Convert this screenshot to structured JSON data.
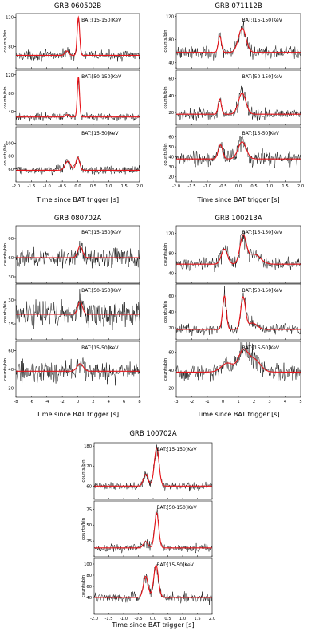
{
  "chart_data": [
    {
      "type": "line",
      "title": "GRB 060502B",
      "xlabel": "Time since BAT trigger [s]",
      "xlim": [
        -2.0,
        2.0
      ],
      "xticks": [
        -2.0,
        -1.5,
        -1.0,
        -0.5,
        0.0,
        0.5,
        1.0,
        1.5,
        2.0
      ],
      "xtick_labels": [
        "-2.0",
        "-1.5",
        "-1.0",
        "-0.5",
        "0.0",
        "0.5",
        "1.0",
        "1.5",
        "2.0"
      ],
      "ylabel": "counts/bin",
      "grid": false,
      "panels": [
        {
          "band": "BAT:[15-150]KeV",
          "ylim": [
            50,
            125
          ],
          "yticks": [
            80,
            120
          ],
          "baseline": 68,
          "noise": 4,
          "peaks": [
            {
              "x": 0.02,
              "height": 52,
              "width": 0.04
            },
            {
              "x": -0.35,
              "height": 6,
              "width": 0.06
            }
          ]
        },
        {
          "band": "BAT:[50-150]KeV",
          "ylim": [
            10,
            130
          ],
          "yticks": [
            40,
            80,
            120
          ],
          "baseline": 28,
          "noise": 5,
          "peaks": [
            {
              "x": 0.02,
              "height": 88,
              "width": 0.035
            },
            {
              "x": -0.35,
              "height": 5,
              "width": 0.05
            }
          ]
        },
        {
          "band": "BAT:[15-50]KeV",
          "ylim": [
            40,
            125
          ],
          "yticks": [
            60,
            80,
            100
          ],
          "baseline": 58,
          "noise": 4,
          "peaks": [
            {
              "x": 0.0,
              "height": 20,
              "width": 0.06
            },
            {
              "x": -0.32,
              "height": 14,
              "width": 0.09
            }
          ]
        }
      ]
    },
    {
      "type": "line",
      "title": "GRB 071112B",
      "xlabel": "Time since BAT trigger [s]",
      "xlim": [
        -2.0,
        2.0
      ],
      "xticks": [
        -2.0,
        -1.5,
        -1.0,
        -0.5,
        0.0,
        0.5,
        1.0,
        1.5,
        2.0
      ],
      "xtick_labels": [
        "-2.0",
        "-1.5",
        "-1.0",
        "-0.5",
        "0.0",
        "0.5",
        "1.0",
        "1.5",
        "2.0"
      ],
      "ylabel": "counts/bin",
      "grid": false,
      "panels": [
        {
          "band": "BAT:[15-150]KeV",
          "ylim": [
            30,
            125
          ],
          "yticks": [
            40,
            80,
            120
          ],
          "baseline": 58,
          "noise": 7,
          "peaks": [
            {
              "x": 0.12,
              "height": 42,
              "width": 0.12
            },
            {
              "x": -0.6,
              "height": 28,
              "width": 0.05
            }
          ]
        },
        {
          "band": "BAT:[50-150]KeV",
          "ylim": [
            5,
            70
          ],
          "yticks": [
            20,
            40,
            60
          ],
          "baseline": 18,
          "noise": 4,
          "peaks": [
            {
              "x": 0.12,
              "height": 25,
              "width": 0.12
            },
            {
              "x": -0.6,
              "height": 18,
              "width": 0.05
            }
          ]
        },
        {
          "band": "BAT:[15-50]KeV",
          "ylim": [
            15,
            70
          ],
          "yticks": [
            20,
            30,
            40,
            50,
            60
          ],
          "baseline": 38,
          "noise": 5,
          "peaks": [
            {
              "x": 0.12,
              "height": 17,
              "width": 0.13
            },
            {
              "x": -0.58,
              "height": 14,
              "width": 0.07
            }
          ]
        }
      ]
    },
    {
      "type": "line",
      "title": "GRB 080702A",
      "xlabel": "Time since BAT trigger [s]",
      "xlim": [
        -8,
        8
      ],
      "xticks": [
        -8,
        -6,
        -4,
        -2,
        0,
        2,
        4,
        6,
        8
      ],
      "xtick_labels": [
        "-8",
        "-6",
        "-4",
        "-2",
        "0",
        "2",
        "4",
        "6",
        "8"
      ],
      "ylabel": "counts/bin",
      "grid": false,
      "panels": [
        {
          "band": "BAT:[15-150]KeV",
          "ylim": [
            20,
            110
          ],
          "yticks": [
            30,
            60,
            90
          ],
          "baseline": 60,
          "noise": 9,
          "peaks": [
            {
              "x": 0.3,
              "height": 18,
              "width": 0.3
            }
          ]
        },
        {
          "band": "BAT:[50-150]KeV",
          "ylim": [
            5,
            40
          ],
          "yticks": [
            15,
            30
          ],
          "baseline": 21,
          "noise": 5,
          "peaks": [
            {
              "x": 0.3,
              "height": 8,
              "width": 0.3
            }
          ]
        },
        {
          "band": "BAT:[15-50]KeV",
          "ylim": [
            10,
            70
          ],
          "yticks": [
            20,
            40,
            60
          ],
          "baseline": 38,
          "noise": 7,
          "peaks": [
            {
              "x": 0.3,
              "height": 8,
              "width": 0.4
            }
          ]
        }
      ]
    },
    {
      "type": "line",
      "title": "GRB 100213A",
      "xlabel": "Time since BAT trigger [s]",
      "xlim": [
        -3,
        5
      ],
      "xticks": [
        -3,
        -2,
        -1,
        0,
        1,
        2,
        3,
        4,
        5
      ],
      "xtick_labels": [
        "-3",
        "-2",
        "-1",
        "0",
        "1",
        "2",
        "3",
        "4",
        "5"
      ],
      "ylabel": "counts/bin",
      "grid": false,
      "panels": [
        {
          "band": "BAT:[15-150]KeV",
          "ylim": [
            20,
            135
          ],
          "yticks": [
            40,
            80,
            120
          ],
          "baseline": 58,
          "noise": 8,
          "peaks": [
            {
              "x": 0.1,
              "height": 30,
              "width": 0.2
            },
            {
              "x": 1.3,
              "height": 55,
              "width": 0.2
            },
            {
              "x": 2.0,
              "height": 20,
              "width": 0.4
            }
          ]
        },
        {
          "band": "BAT:[50-150]KeV",
          "ylim": [
            5,
            75
          ],
          "yticks": [
            20,
            40,
            60
          ],
          "baseline": 18,
          "noise": 4,
          "peaks": [
            {
              "x": 0.1,
              "height": 42,
              "width": 0.12
            },
            {
              "x": 1.3,
              "height": 40,
              "width": 0.15
            },
            {
              "x": 1.9,
              "height": 8,
              "width": 0.3
            }
          ]
        },
        {
          "band": "BAT:[15-50]KeV",
          "ylim": [
            10,
            72
          ],
          "yticks": [
            20,
            40,
            60
          ],
          "baseline": 38,
          "noise": 6,
          "peaks": [
            {
              "x": 0.3,
              "height": 10,
              "width": 0.4
            },
            {
              "x": 1.3,
              "height": 22,
              "width": 0.3
            },
            {
              "x": 2.0,
              "height": 14,
              "width": 0.4
            }
          ]
        }
      ]
    },
    {
      "type": "line",
      "title": "GRB 100702A",
      "xlabel": "Time since BAT trigger [s]",
      "xlim": [
        -2.0,
        2.0
      ],
      "xticks": [
        -2.0,
        -1.5,
        -1.0,
        -0.5,
        0.0,
        0.5,
        1.0,
        1.5,
        2.0
      ],
      "xtick_labels": [
        "-2.0",
        "-1.5",
        "-1.0",
        "-0.5",
        "0.0",
        "0.5",
        "1.0",
        "1.5",
        "2.0"
      ],
      "ylabel": "counts/bin",
      "grid": false,
      "panels": [
        {
          "band": "BAT:[15-150]KeV",
          "ylim": [
            20,
            190
          ],
          "yticks": [
            60,
            120,
            180
          ],
          "baseline": 60,
          "noise": 8,
          "peaks": [
            {
              "x": 0.12,
              "height": 115,
              "width": 0.08
            },
            {
              "x": -0.25,
              "height": 35,
              "width": 0.08
            }
          ]
        },
        {
          "band": "BAT:[50-150]KeV",
          "ylim": [
            0,
            88
          ],
          "yticks": [
            25,
            50,
            75
          ],
          "baseline": 14,
          "noise": 4,
          "peaks": [
            {
              "x": 0.12,
              "height": 55,
              "width": 0.07
            },
            {
              "x": -0.25,
              "height": 10,
              "width": 0.08
            }
          ]
        },
        {
          "band": "BAT:[15-50]KeV",
          "ylim": [
            10,
            110
          ],
          "yticks": [
            40,
            60,
            80,
            100
          ],
          "baseline": 40,
          "noise": 6,
          "peaks": [
            {
              "x": 0.1,
              "height": 58,
              "width": 0.08
            },
            {
              "x": -0.25,
              "height": 38,
              "width": 0.08
            }
          ]
        }
      ]
    }
  ],
  "colors": {
    "data_line": "#000000",
    "fit_line": "#e8141a",
    "axes": "#000000",
    "background": "#ffffff"
  }
}
